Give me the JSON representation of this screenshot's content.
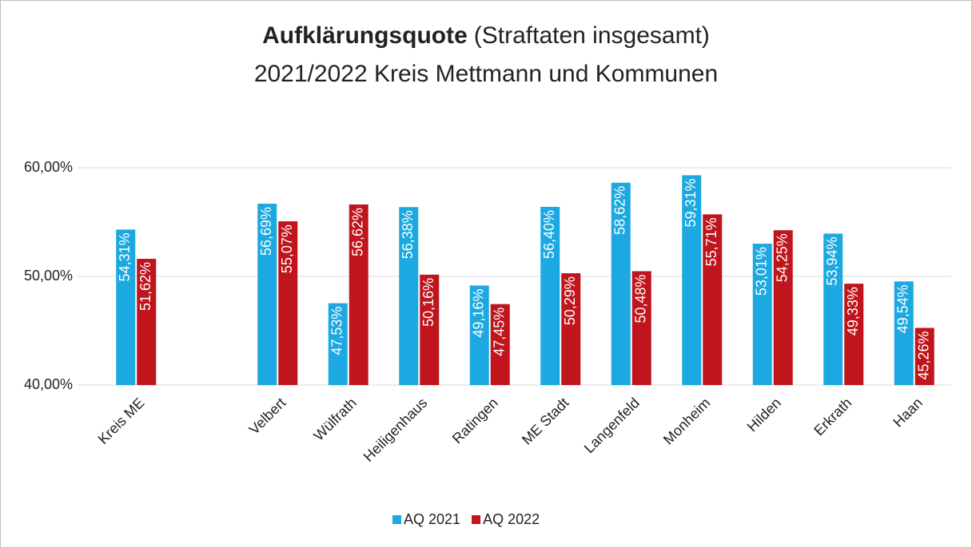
{
  "chart_data": {
    "type": "bar",
    "title": "Aufklärungsquote",
    "title_suffix": "(Straftaten insgesamt)",
    "subtitle": "2021/2022 Kreis Mettmann und Kommunen",
    "categories": [
      "Kreis ME",
      null,
      "Velbert",
      "Wülfrath",
      "Heiligenhaus",
      "Ratingen",
      "ME Stadt",
      "Langenfeld",
      "Monheim",
      "Hilden",
      "Erkrath",
      "Haan"
    ],
    "series": [
      {
        "name": "AQ 2021",
        "color": "#1ca8e0",
        "values": [
          54.31,
          null,
          56.69,
          47.53,
          56.38,
          49.16,
          56.4,
          58.62,
          59.31,
          53.01,
          53.94,
          49.54
        ],
        "value_labels": [
          "54,31%",
          null,
          "56,69%",
          "47,53%",
          "56,38%",
          "49,16%",
          "56,40%",
          "58,62%",
          "59,31%",
          "53,01%",
          "53,94%",
          "49,54%"
        ]
      },
      {
        "name": "AQ 2022",
        "color": "#c0151d",
        "values": [
          51.62,
          null,
          55.07,
          56.62,
          50.16,
          47.45,
          50.29,
          50.48,
          55.71,
          54.25,
          49.33,
          45.26
        ],
        "value_labels": [
          "51,62%",
          null,
          "55,07%",
          "56,62%",
          "50,16%",
          "47,45%",
          "50,29%",
          "50,48%",
          "55,71%",
          "54,25%",
          "49,33%",
          "45,26%"
        ]
      }
    ],
    "ylim": [
      40,
      60
    ],
    "yticks": [
      {
        "value": 40,
        "label": "40,00%"
      },
      {
        "value": 50,
        "label": "50,00%"
      },
      {
        "value": 60,
        "label": "60,00%"
      }
    ],
    "grid": true,
    "legend": "bottom"
  }
}
